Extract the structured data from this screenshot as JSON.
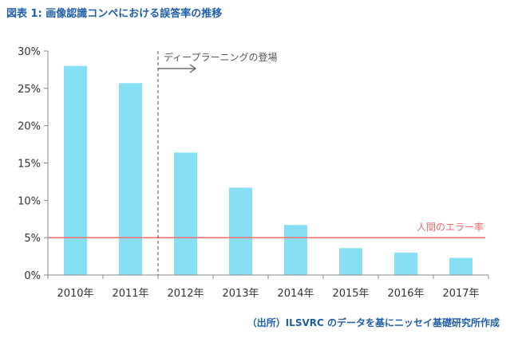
{
  "title": "図表 1: 画像認識コンペにおける誤答率の推移",
  "source": "（出所）ILSVRC のデータを基にニッセイ基礎研究所作成",
  "chart_data": {
    "type": "bar",
    "title": "図表 1: 画像認識コンペにおける誤答率の推移",
    "categories": [
      "2010年",
      "2011年",
      "2012年",
      "2013年",
      "2014年",
      "2015年",
      "2016年",
      "2017年"
    ],
    "values": [
      28.0,
      25.7,
      16.4,
      11.7,
      6.7,
      3.6,
      3.0,
      2.3
    ],
    "unit": "%",
    "ylim": [
      0,
      30
    ],
    "yticks": [
      0,
      5,
      10,
      15,
      20,
      25,
      30
    ],
    "ytick_labels": [
      "0%",
      "5%",
      "10%",
      "15%",
      "20%",
      "25%",
      "30%"
    ],
    "grid": false,
    "bar_color": "#87dff5",
    "reference_line": {
      "value": 5,
      "label": "人間のエラー率",
      "color": "#f26b6b"
    },
    "annotation": {
      "label": "ディープラーニングの登場",
      "between": [
        "2011年",
        "2012年"
      ]
    }
  }
}
